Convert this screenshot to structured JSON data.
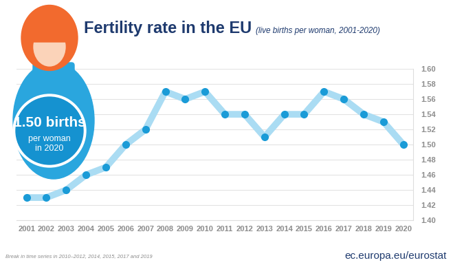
{
  "chart_data": {
    "type": "line",
    "title": "Fertility rate in the EU",
    "subtitle": "(live births per woman, 2001-2020)",
    "categories": [
      "2001",
      "2002",
      "2003",
      "2004",
      "2005",
      "2006",
      "2007",
      "2008",
      "2009",
      "2010",
      "2011",
      "2012",
      "2013",
      "2014",
      "2015",
      "2016",
      "2017",
      "2018",
      "2019",
      "2020"
    ],
    "values": [
      1.43,
      1.43,
      1.44,
      1.46,
      1.47,
      1.5,
      1.52,
      1.57,
      1.56,
      1.57,
      1.54,
      1.54,
      1.51,
      1.54,
      1.54,
      1.57,
      1.56,
      1.54,
      1.53,
      1.5
    ],
    "color": "#aadcf3",
    "marker": "o",
    "ylim": [
      1.4,
      1.6
    ],
    "yticks": [
      {
        "value": 1.4,
        "label": "1.40"
      },
      {
        "value": 1.42,
        "label": "1.42"
      },
      {
        "value": 1.44,
        "label": "1.44"
      },
      {
        "value": 1.46,
        "label": "1.46"
      },
      {
        "value": 1.48,
        "label": "1.48"
      },
      {
        "value": 1.5,
        "label": "1.50"
      },
      {
        "value": 1.52,
        "label": "1.52"
      },
      {
        "value": 1.54,
        "label": "1.54"
      },
      {
        "value": 1.56,
        "label": "1.56"
      },
      {
        "value": 1.58,
        "label": "1.58"
      },
      {
        "value": 1.6,
        "label": "1.60"
      }
    ],
    "grid": true,
    "annotations": [
      "1.50 births",
      "per woman",
      "in 2020"
    ],
    "note": "Break in time series in 2010–2012, 2014, 2015, 2017 and 2019",
    "source": "ec.europa.eu/eurostat"
  }
}
